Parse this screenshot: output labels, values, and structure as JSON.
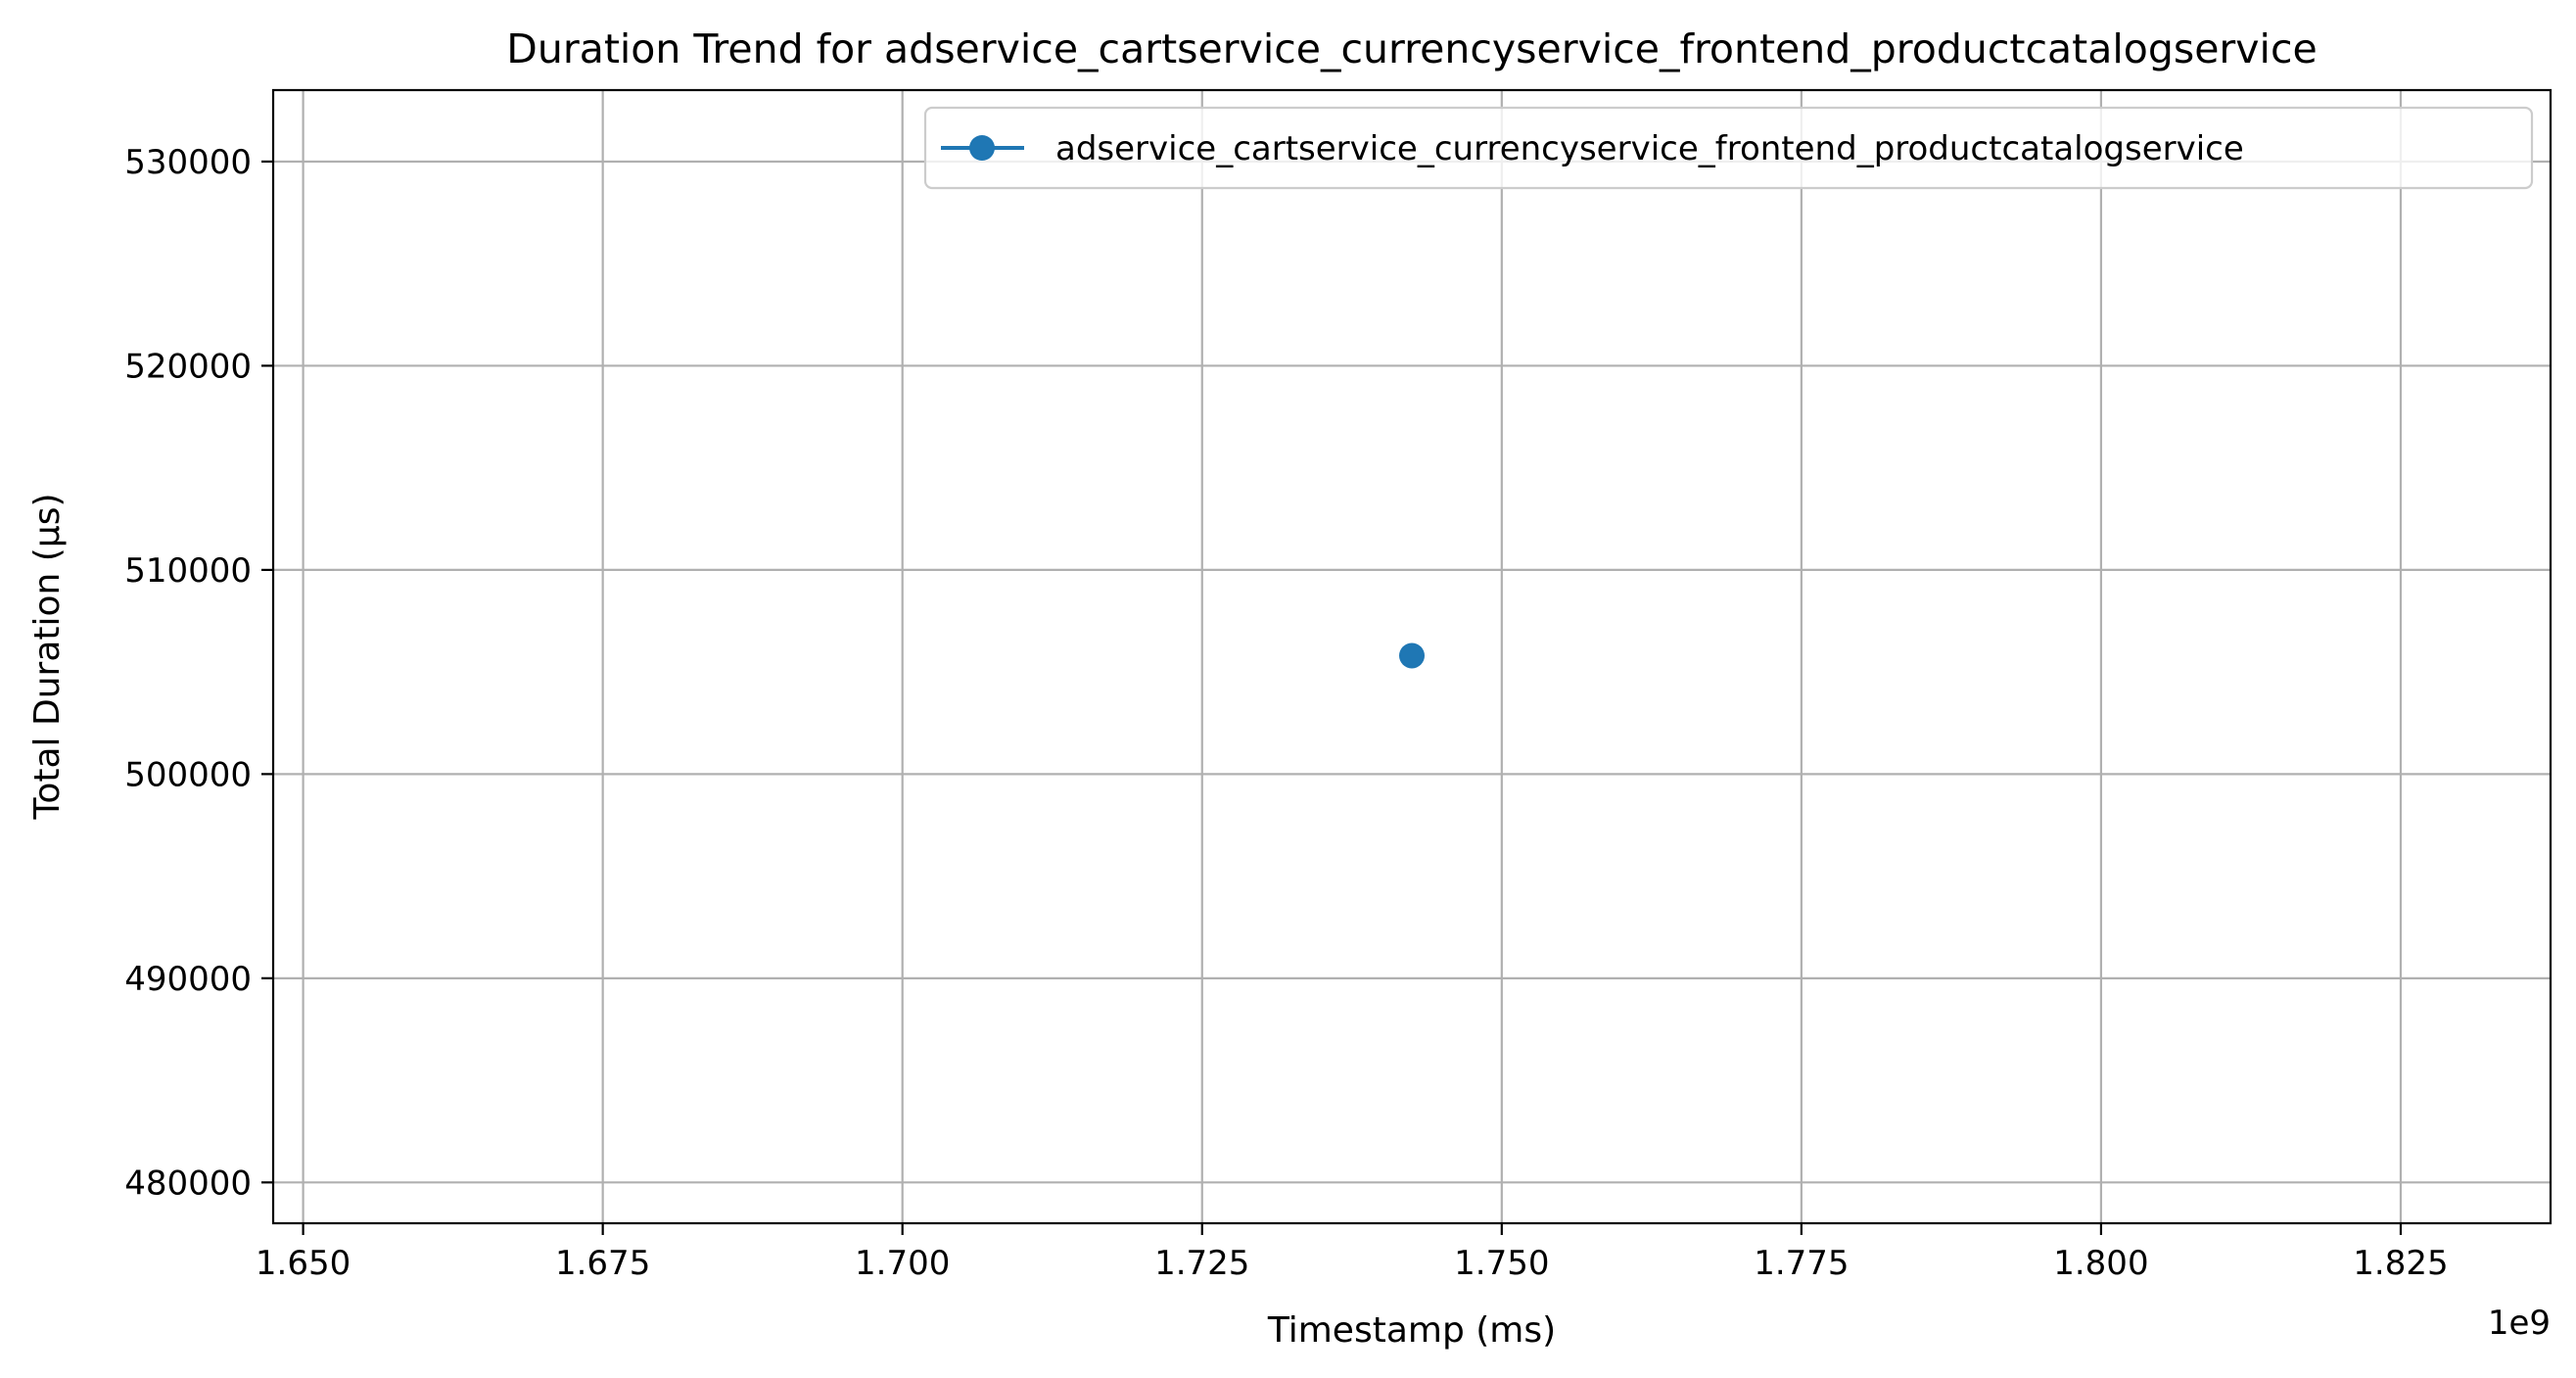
{
  "chart_data": {
    "type": "line",
    "title": "Duration Trend for adservice_cartservice_currencyservice_frontend_productcatalogservice",
    "xlabel": "Timestamp (ms)",
    "ylabel": "Total Duration (μs)",
    "x_offset_label": "1e9",
    "xlim": [
      1.6475,
      1.8375
    ],
    "ylim": [
      478000,
      533500
    ],
    "x_ticks": [
      1.65,
      1.675,
      1.7,
      1.725,
      1.75,
      1.775,
      1.8,
      1.825
    ],
    "x_tick_labels": [
      "1.650",
      "1.675",
      "1.700",
      "1.725",
      "1.750",
      "1.775",
      "1.800",
      "1.825"
    ],
    "y_ticks": [
      480000,
      490000,
      500000,
      510000,
      520000,
      530000
    ],
    "y_tick_labels": [
      "480000",
      "490000",
      "500000",
      "510000",
      "520000",
      "530000"
    ],
    "grid": true,
    "legend_position": "top-right",
    "series": [
      {
        "name": "adservice_cartservice_currencyservice_frontend_productcatalogservice",
        "color": "#1f77b4",
        "marker": "circle",
        "points": [
          {
            "x": 1.7425,
            "y": 505800
          }
        ]
      }
    ]
  }
}
